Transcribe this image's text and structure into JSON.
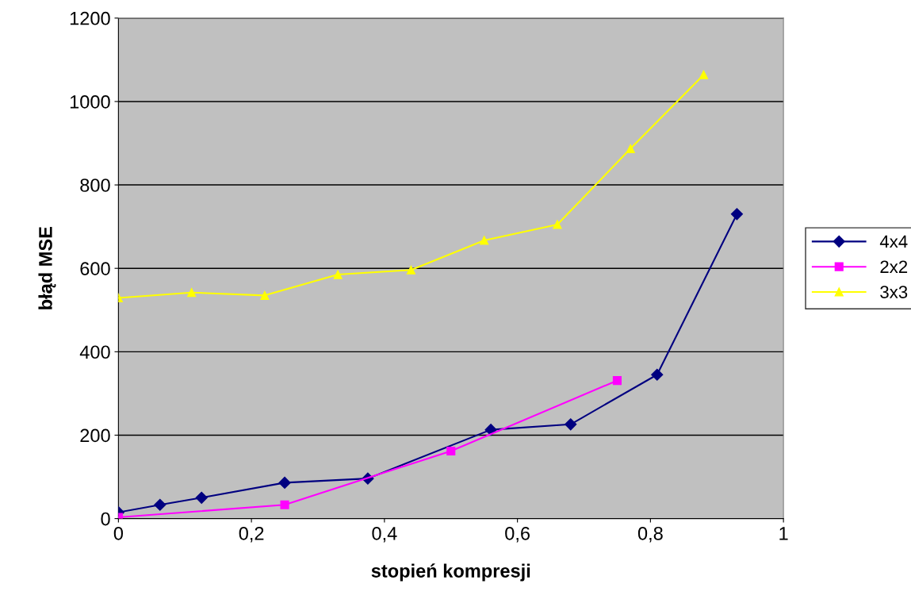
{
  "chart_data": {
    "type": "line",
    "xlabel": "stopień kompresji",
    "ylabel": "błąd MSE",
    "xlim": [
      0,
      1
    ],
    "xticks": [
      0,
      {
        "value": 0.2,
        "label": "0,2"
      },
      {
        "value": 0.4,
        "label": "0,4"
      },
      {
        "value": 0.6,
        "label": "0,6"
      },
      {
        "value": 0.8,
        "label": "0,8"
      },
      1
    ],
    "ylim": [
      0,
      1200
    ],
    "yticks": [
      0,
      200,
      400,
      600,
      800,
      1000,
      1200
    ],
    "grid": "y",
    "legend": "right",
    "line_style": "solid",
    "series": [
      {
        "name": "4x4",
        "color": "#000080",
        "marker": "diamond",
        "x": [
          0,
          0.0625,
          0.125,
          0.25,
          0.375,
          0.56,
          0.68,
          0.81,
          0.93
        ],
        "values": [
          15,
          33,
          50,
          86,
          96,
          213,
          226,
          345,
          730
        ]
      },
      {
        "name": "2x2",
        "color": "#ff00ff",
        "marker": "square",
        "x": [
          0,
          0.25,
          0.5,
          0.75
        ],
        "values": [
          3,
          33,
          162,
          331
        ]
      },
      {
        "name": "3x3",
        "color": "#ffff00",
        "marker": "triangle",
        "x": [
          0,
          0.11,
          0.22,
          0.33,
          0.44,
          0.55,
          0.66,
          0.77,
          0.88
        ],
        "values": [
          529,
          542,
          535,
          585,
          596,
          667,
          705,
          887,
          1064
        ]
      }
    ]
  }
}
